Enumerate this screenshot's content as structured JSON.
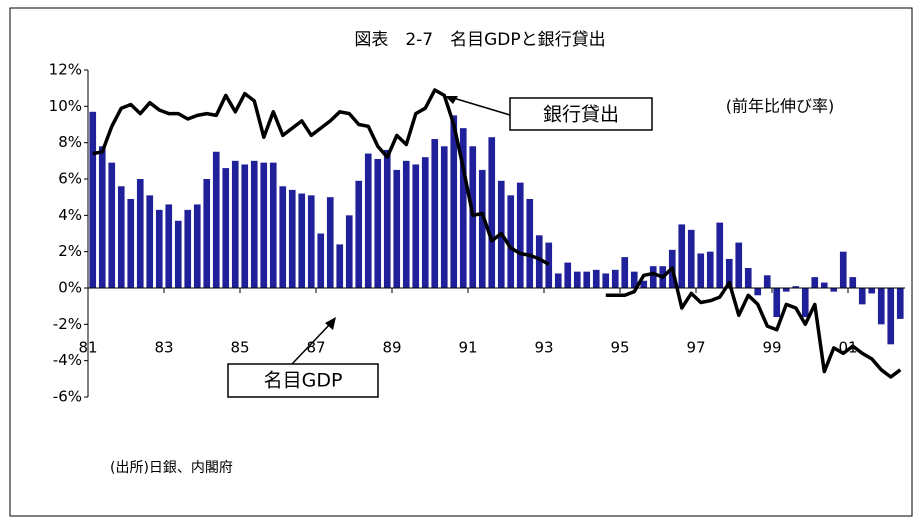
{
  "chart_data": {
    "type": "bar-line",
    "title": "図表　2-7　名目GDPと銀行貸出",
    "subtitle": "(前年比伸び率)",
    "source": "(出所)日銀、内閣府",
    "annotations": [
      "銀行貸出",
      "名目GDP"
    ],
    "x": [
      1981,
      1981.25,
      1981.5,
      1981.75,
      1982,
      1982.25,
      1982.5,
      1982.75,
      1983,
      1983.25,
      1983.5,
      1983.75,
      1984,
      1984.25,
      1984.5,
      1984.75,
      1985,
      1985.25,
      1985.5,
      1985.75,
      1986,
      1986.25,
      1986.5,
      1986.75,
      1987,
      1987.25,
      1987.5,
      1987.75,
      1988,
      1988.25,
      1988.5,
      1988.75,
      1989,
      1989.25,
      1989.5,
      1989.75,
      1990,
      1990.25,
      1990.5,
      1990.75,
      1991,
      1991.25,
      1991.5,
      1991.75,
      1992,
      1992.25,
      1992.5,
      1992.75,
      1993,
      1993.25,
      1993.5,
      1993.75,
      1994,
      1994.25,
      1994.5,
      1994.75,
      1995,
      1995.25,
      1995.5,
      1995.75,
      1996,
      1996.25,
      1996.5,
      1996.75,
      1997,
      1997.25,
      1997.5,
      1997.75,
      1998,
      1998.25,
      1998.5,
      1998.75,
      1999,
      1999.25,
      1999.5,
      1999.75,
      2000,
      2000.25,
      2000.5,
      2000.75,
      2001,
      2001.25,
      2001.5,
      2001.75,
      2002,
      2002.25
    ],
    "series": [
      {
        "name": "名目GDP",
        "kind": "bar",
        "color": "#20209a",
        "values": [
          9.7,
          7.8,
          6.9,
          5.6,
          4.9,
          6.0,
          5.1,
          4.3,
          4.6,
          3.7,
          4.3,
          4.6,
          6.0,
          7.5,
          6.6,
          7.0,
          6.8,
          7.0,
          6.9,
          6.9,
          5.6,
          5.4,
          5.2,
          5.1,
          3.0,
          5.0,
          2.4,
          4.0,
          5.9,
          7.4,
          7.1,
          7.6,
          6.5,
          7.0,
          6.8,
          7.2,
          8.2,
          7.8,
          9.5,
          8.8,
          7.8,
          6.5,
          8.3,
          5.9,
          5.1,
          5.8,
          4.9,
          2.9,
          2.5,
          0.8,
          1.4,
          0.9,
          0.9,
          1.0,
          0.8,
          1.0,
          1.7,
          0.9,
          0.4,
          1.2,
          1.2,
          2.1,
          3.5,
          3.2,
          1.9,
          2.0,
          3.6,
          1.6,
          2.5,
          1.1,
          -0.4,
          0.7,
          -1.6,
          -0.2,
          0.1,
          -1.6,
          0.6,
          0.3,
          -0.2,
          2.0,
          0.6,
          -0.9,
          -0.3,
          -2.0,
          -3.1,
          -1.7
        ]
      },
      {
        "name": "銀行貸出",
        "kind": "line",
        "color": "#000000",
        "values": [
          7.4,
          7.5,
          8.9,
          9.9,
          10.1,
          9.6,
          10.2,
          9.8,
          9.6,
          9.6,
          9.3,
          9.5,
          9.6,
          9.5,
          10.6,
          9.7,
          10.7,
          10.3,
          8.3,
          9.7,
          8.4,
          8.8,
          9.2,
          8.4,
          8.8,
          9.2,
          9.7,
          9.6,
          9.0,
          8.9,
          7.8,
          7.2,
          8.4,
          7.9,
          9.6,
          9.9,
          10.9,
          10.6,
          9.0,
          6.6,
          4.0,
          4.1,
          2.6,
          3.0,
          2.2,
          1.9,
          1.8,
          1.6,
          1.3,
          null,
          null,
          null,
          null,
          null,
          -0.4,
          -0.4,
          -0.4,
          -0.2,
          0.7,
          0.8,
          0.6,
          1.1,
          -1.1,
          -0.3,
          -0.8,
          -0.7,
          -0.5,
          0.3,
          -1.5,
          -0.4,
          -0.9,
          -2.1,
          -2.3,
          -0.9,
          -1.1,
          -2.0,
          -0.9,
          -4.6,
          -3.3,
          -3.6,
          -3.2,
          -3.6,
          -3.9,
          -4.5,
          -4.9,
          -4.5
        ]
      }
    ],
    "xlim": [
      1981,
      2002.5
    ],
    "xticks": [
      {
        "value": 1981,
        "label": "81"
      },
      {
        "value": 1983,
        "label": "83"
      },
      {
        "value": 1985,
        "label": "85"
      },
      {
        "value": 1987,
        "label": "87"
      },
      {
        "value": 1989,
        "label": "89"
      },
      {
        "value": 1991,
        "label": "91"
      },
      {
        "value": 1993,
        "label": "93"
      },
      {
        "value": 1995,
        "label": "95"
      },
      {
        "value": 1997,
        "label": "97"
      },
      {
        "value": 1999,
        "label": "99"
      },
      {
        "value": 2001,
        "label": "01"
      }
    ],
    "ylim": [
      -6,
      12
    ],
    "yticks": [
      {
        "value": -6,
        "label": "-6%"
      },
      {
        "value": -4,
        "label": "-4%"
      },
      {
        "value": -2,
        "label": "-2%"
      },
      {
        "value": 0,
        "label": "0%"
      },
      {
        "value": 2,
        "label": "2%"
      },
      {
        "value": 4,
        "label": "4%"
      },
      {
        "value": 6,
        "label": "6%"
      },
      {
        "value": 8,
        "label": "8%"
      },
      {
        "value": 10,
        "label": "10%"
      },
      {
        "value": 12,
        "label": "12%"
      }
    ]
  }
}
